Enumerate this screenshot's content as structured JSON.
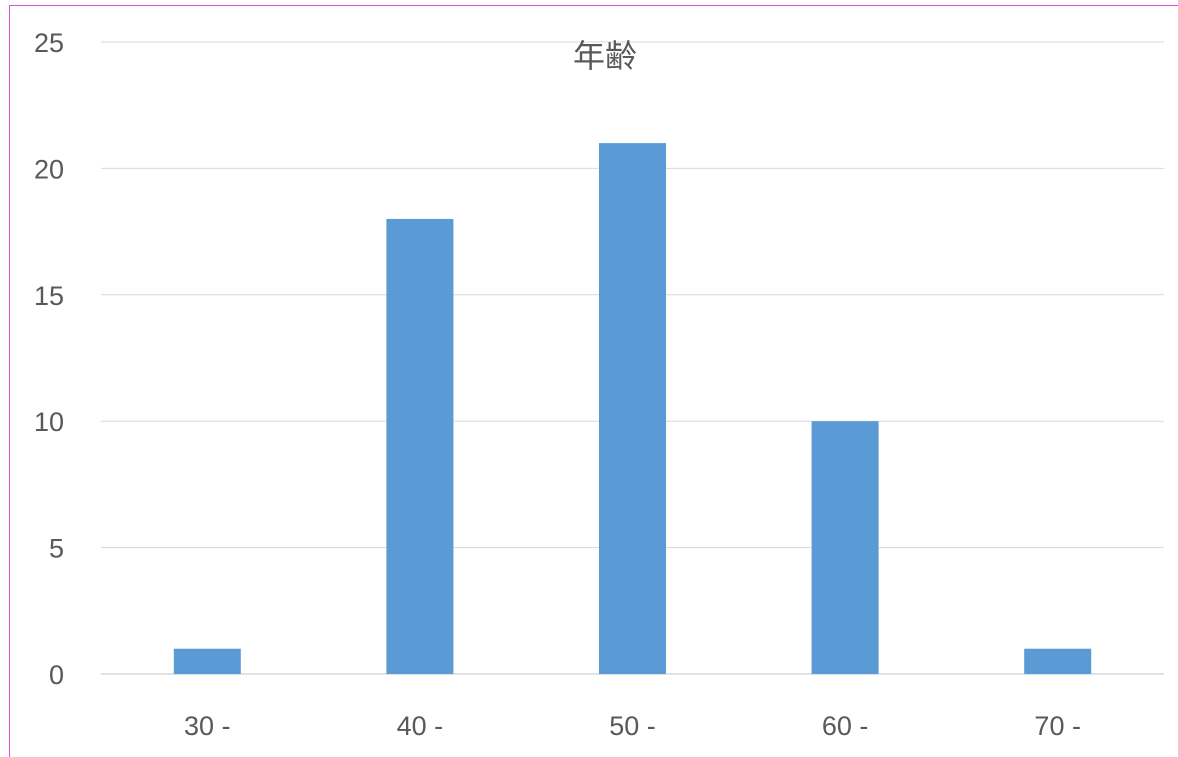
{
  "chart_data": {
    "type": "bar",
    "title": "年齢",
    "categories": [
      "30 -",
      "40 -",
      "50 -",
      "60 -",
      "70 -"
    ],
    "values": [
      1,
      18,
      21,
      10,
      1
    ],
    "ylim": [
      0,
      25
    ],
    "yticks": [
      "0",
      "5",
      "10",
      "15",
      "20",
      "25"
    ],
    "grid": true,
    "legend": "none",
    "bar_color": "#5b9bd5",
    "grid_color": "#d9d9d9",
    "text_color": "#595959",
    "border_color": "#d94fd9"
  }
}
